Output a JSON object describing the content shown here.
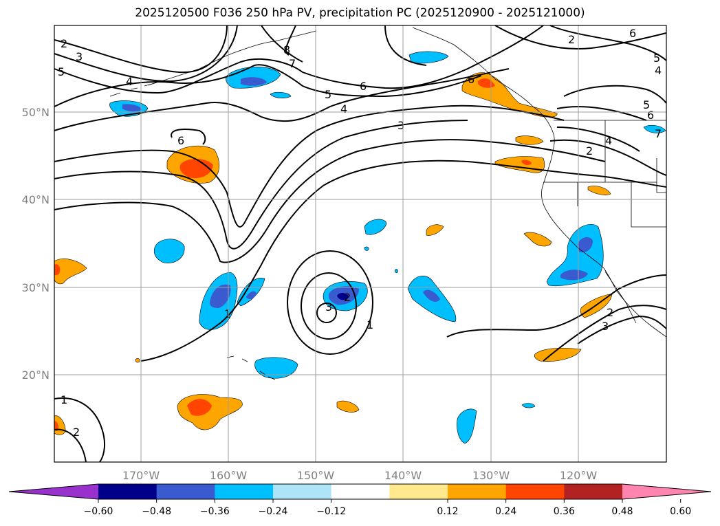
{
  "title": "2025120500 F036 250 hPa PV, precipitation PC (2025120900 - 2025121000)",
  "lat_labels": [
    "50°N",
    "40°N",
    "30°N",
    "20°N"
  ],
  "lon_labels": [
    "170°W",
    "160°W",
    "150°W",
    "140°W",
    "130°W",
    "120°W"
  ],
  "colorbar": {
    "ticks": [
      "−0.60",
      "−0.48",
      "−0.36",
      "−0.24",
      "−0.12",
      "0.12",
      "0.24",
      "0.36",
      "0.48",
      "0.60"
    ],
    "colors": [
      "#9932cc",
      "#00008b",
      "#3a5bd0",
      "#00bfff",
      "#ade4f7",
      "#ffffff",
      "#ffe98c",
      "#ffa500",
      "#ff4500",
      "#b22222",
      "#ff85b0"
    ]
  },
  "pv_contour_labels": [
    "2",
    "3",
    "5",
    "4",
    "6",
    "7",
    "8",
    "5",
    "6",
    "4",
    "3",
    "6",
    "2",
    "6",
    "5",
    "4",
    "5",
    "6",
    "4",
    "2",
    "7",
    "1",
    "3",
    "2",
    "1",
    "2",
    "3",
    "1",
    "2"
  ],
  "colors": {
    "blue": "#00bfff",
    "dark_blue": "#3a5bd0",
    "navy": "#00008b",
    "orange": "#ffa500",
    "red_orange": "#ff4500"
  }
}
